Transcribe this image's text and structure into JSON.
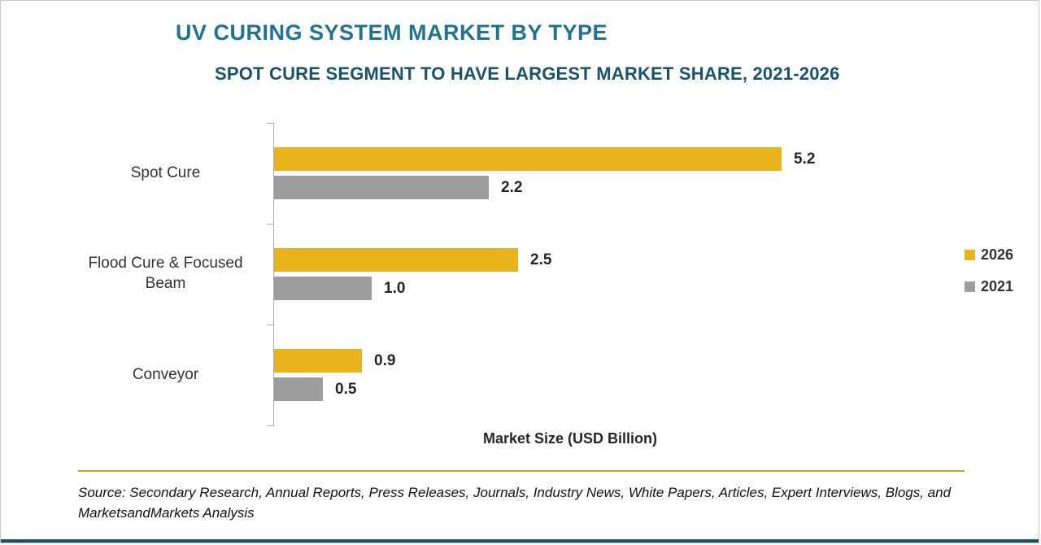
{
  "header": {
    "title": "UV CURING SYSTEM MARKET BY TYPE",
    "subtitle": "SPOT CURE SEGMENT TO HAVE LARGEST MARKET SHARE, 2021-2026"
  },
  "chart_data": {
    "type": "bar",
    "orientation": "horizontal",
    "categories": [
      "Spot Cure",
      "Flood Cure & Focused Beam",
      "Conveyor"
    ],
    "series": [
      {
        "name": "2026",
        "color": "#E8B31C",
        "values": [
          5.2,
          2.5,
          0.9
        ]
      },
      {
        "name": "2021",
        "color": "#9D9D9D",
        "values": [
          2.2,
          1.0,
          0.5
        ]
      }
    ],
    "xlabel": "Market Size (USD Billion)",
    "xlim": [
      0,
      6.5
    ],
    "grid": false,
    "legend_position": "right",
    "value_labels": [
      "5.2",
      "2.2",
      "2.5",
      "1.0",
      "0.9",
      "0.5"
    ]
  },
  "footer": {
    "source": "Source: Secondary Research, Annual Reports, Press Releases, Journals, Industry News, White Papers, Articles, Expert Interviews, Blogs, and MarketsandMarkets Analysis"
  },
  "colors": {
    "title": "#1F7391",
    "subtitle": "#15536E",
    "bar_2026": "#E8B31C",
    "bar_2021": "#9D9D9D",
    "axis": "#ABABAB",
    "divider": "#D4A017",
    "bottom_strip": "#1E4E66"
  }
}
